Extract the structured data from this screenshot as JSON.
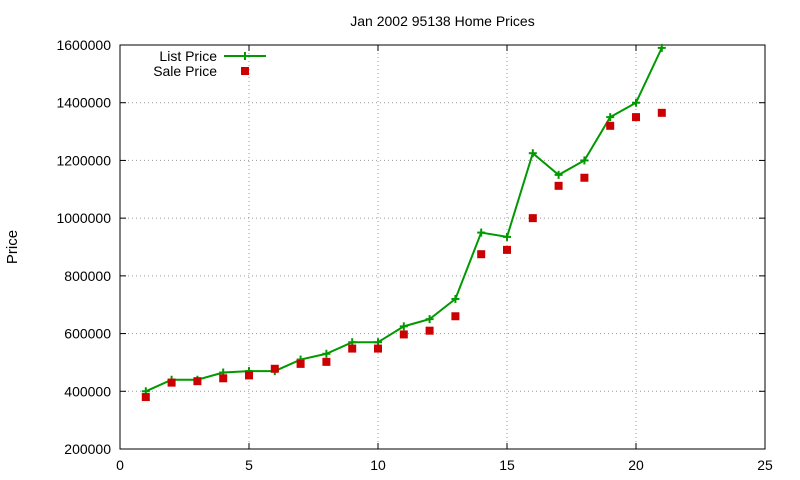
{
  "chart_data": {
    "type": "line",
    "title": "Jan 2002 95138 Home Prices",
    "xlabel": "",
    "ylabel": "Price",
    "xlim": [
      0,
      25
    ],
    "ylim": [
      200000,
      1600000
    ],
    "xticks": [
      0,
      5,
      10,
      15,
      20,
      25
    ],
    "yticks": [
      200000,
      400000,
      600000,
      800000,
      1000000,
      1200000,
      1400000,
      1600000
    ],
    "grid": true,
    "legend_position": "top-left",
    "x": [
      1,
      2,
      3,
      4,
      5,
      6,
      7,
      8,
      9,
      10,
      11,
      12,
      13,
      14,
      15,
      16,
      17,
      18,
      19,
      20,
      21
    ],
    "series": [
      {
        "name": "List Price",
        "style": "line-with-plus",
        "color": "#009900",
        "values": [
          400000,
          440000,
          440000,
          465000,
          470000,
          470000,
          510000,
          530000,
          570000,
          570000,
          625000,
          650000,
          720000,
          950000,
          935000,
          1225000,
          1150000,
          1200000,
          1350000,
          1400000,
          1590000
        ]
      },
      {
        "name": "Sale Price",
        "style": "square-markers",
        "color": "#cc0000",
        "values": [
          380000,
          430000,
          435000,
          445000,
          455000,
          478000,
          495000,
          502000,
          548000,
          548000,
          597000,
          610000,
          660000,
          875000,
          890000,
          1000000,
          1112000,
          1140000,
          1320000,
          1350000,
          1365000
        ]
      }
    ]
  }
}
